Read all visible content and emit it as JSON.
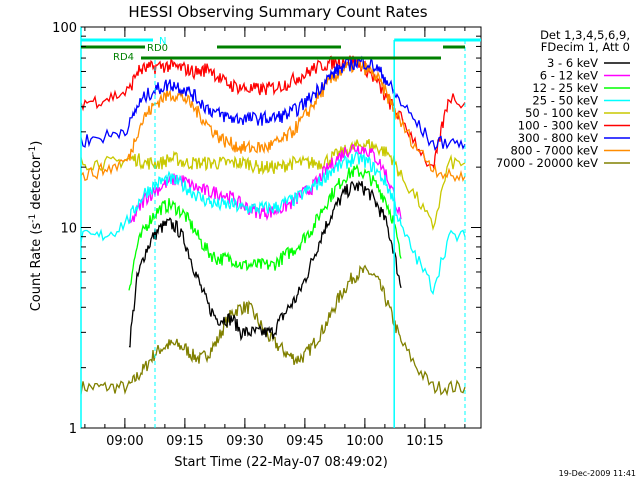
{
  "chart_data": {
    "type": "line",
    "title": "HESSI Observing Summary Count Rates",
    "xlabel": "Start Time (22-May-07 08:49:02)",
    "ylabel_main": "Count Rate (s",
    "ylabel_sup1": "-1",
    "ylabel_mid": " detector",
    "ylabel_sup2": "-1",
    "ylabel_end": ")",
    "yscale": "log",
    "ylim": [
      1,
      100
    ],
    "xlim_minutes": [
      0,
      100
    ],
    "x_tick_labels": [
      "09:00",
      "09:15",
      "09:30",
      "09:45",
      "10:00",
      "10:15"
    ],
    "x_tick_minutes": [
      10.97,
      25.97,
      40.97,
      55.97,
      70.97,
      85.97
    ],
    "y_tick_labels": [
      "1",
      "10",
      "100"
    ],
    "y_tick_values": [
      1,
      10,
      100
    ],
    "legend_header": [
      "Det 1,3,4,5,6,9,",
      "FDecim 1, Att 0"
    ],
    "legend_position": "right",
    "timestamp": "19-Dec-2009 11:41",
    "attenuator_labels": {
      "n": "N",
      "rd0": "RD0",
      "rd4": "RD4"
    },
    "series": [
      {
        "name": "3 - 6 keV",
        "color": "#000000",
        "x": [
          12,
          14,
          16,
          18,
          20,
          22,
          24,
          26,
          28,
          30,
          32,
          34,
          36,
          38,
          40,
          42,
          44,
          46,
          48,
          50,
          52,
          54,
          56,
          58,
          60,
          62,
          64,
          66,
          68,
          70,
          72,
          74,
          76,
          78,
          80
        ],
        "y": [
          2.5,
          5.5,
          7.5,
          9,
          10,
          10.5,
          10,
          8.5,
          6.5,
          5,
          4,
          3.5,
          3.5,
          3.5,
          3,
          3,
          3,
          3,
          3,
          3.5,
          4,
          4.5,
          5.5,
          7,
          9,
          11,
          13,
          15,
          16,
          16,
          15,
          13,
          11,
          8,
          5
        ]
      },
      {
        "name": "6 - 12 keV",
        "color": "#ff00ff",
        "x": [
          12,
          14,
          16,
          18,
          20,
          22,
          24,
          26,
          28,
          30,
          32,
          34,
          36,
          38,
          40,
          42,
          44,
          46,
          48,
          50,
          52,
          54,
          56,
          58,
          60,
          62,
          64,
          66,
          68,
          70,
          72,
          74,
          76,
          78,
          80
        ],
        "y": [
          10,
          12,
          14,
          15,
          16,
          17,
          17.5,
          17,
          16,
          15.5,
          15,
          15,
          14.5,
          14,
          13,
          12.5,
          12,
          12,
          12,
          12.5,
          13,
          14,
          15,
          16,
          18,
          20,
          22,
          24,
          25,
          25,
          24,
          22,
          19,
          15,
          11
        ]
      },
      {
        "name": "12 - 25 keV",
        "color": "#00ff00",
        "x": [
          12,
          14,
          16,
          18,
          20,
          22,
          24,
          26,
          28,
          30,
          32,
          34,
          36,
          38,
          40,
          42,
          44,
          46,
          48,
          50,
          52,
          54,
          56,
          58,
          60,
          62,
          64,
          66,
          68,
          70,
          72,
          74,
          76,
          78,
          80
        ],
        "y": [
          5,
          8,
          10,
          11.5,
          12.5,
          13,
          12.5,
          11.5,
          10,
          8.5,
          7.5,
          7,
          7,
          7,
          6.5,
          6.5,
          6.5,
          6.5,
          6.5,
          7,
          7.5,
          8,
          9,
          10,
          12,
          14,
          16,
          18,
          19,
          19,
          18,
          16,
          14,
          11,
          7
        ]
      },
      {
        "name": "25 - 50 keV",
        "color": "#00ffff",
        "x": [
          0,
          4,
          8,
          12,
          14,
          16,
          18,
          20,
          22,
          24,
          26,
          28,
          30,
          32,
          34,
          36,
          38,
          40,
          42,
          44,
          46,
          48,
          50,
          52,
          54,
          56,
          58,
          60,
          62,
          64,
          66,
          68,
          70,
          72,
          74,
          76,
          78,
          80,
          84,
          88,
          92,
          96
        ],
        "y": [
          9,
          9,
          9.5,
          11,
          13,
          15,
          16,
          17,
          17.5,
          17,
          16,
          15,
          14,
          13.5,
          13,
          13,
          13,
          12.5,
          12.5,
          12.5,
          12.5,
          12.5,
          13,
          13.5,
          14,
          15,
          16,
          17,
          19,
          20,
          21,
          22,
          22,
          21,
          19,
          17,
          14,
          10,
          7,
          5,
          9,
          9
        ]
      },
      {
        "name": "50 - 100 keV",
        "color": "#c8c800",
        "x": [
          0,
          4,
          8,
          12,
          14,
          16,
          18,
          20,
          22,
          24,
          26,
          28,
          30,
          32,
          34,
          36,
          38,
          40,
          42,
          44,
          46,
          48,
          50,
          52,
          54,
          56,
          58,
          60,
          62,
          64,
          66,
          68,
          70,
          72,
          74,
          76,
          78,
          80,
          84,
          88,
          92,
          96
        ],
        "y": [
          21,
          21,
          21,
          22,
          22,
          21,
          21,
          21,
          22,
          22,
          21,
          21,
          21,
          21,
          21,
          21,
          21,
          21,
          21,
          20,
          20,
          20,
          20,
          21,
          21,
          21,
          21,
          21,
          22,
          23,
          24,
          25,
          26,
          26,
          25,
          24,
          22,
          18,
          14,
          10,
          21,
          21
        ]
      },
      {
        "name": "100 - 300 keV",
        "color": "#ff0000",
        "x": [
          0,
          4,
          8,
          12,
          14,
          16,
          18,
          20,
          22,
          24,
          26,
          28,
          30,
          32,
          34,
          36,
          38,
          40,
          42,
          44,
          46,
          48,
          50,
          52,
          54,
          56,
          58,
          60,
          62,
          64,
          66,
          68,
          70,
          72,
          74,
          76,
          78,
          80,
          84,
          88,
          90,
          92,
          96
        ],
        "y": [
          42,
          43,
          45,
          48,
          60,
          62,
          63,
          64,
          64,
          63,
          62,
          60,
          60,
          63,
          57,
          53,
          51,
          50,
          49,
          49,
          49,
          50,
          51,
          53,
          56,
          58,
          62,
          64,
          66,
          67,
          68,
          68,
          65,
          60,
          53,
          45,
          40,
          35,
          26,
          19,
          30,
          45,
          42
        ]
      },
      {
        "name": "300 - 800 keV",
        "color": "#0000ff",
        "x": [
          0,
          4,
          8,
          12,
          14,
          16,
          18,
          20,
          22,
          24,
          26,
          28,
          30,
          32,
          34,
          36,
          38,
          40,
          42,
          44,
          46,
          48,
          50,
          52,
          54,
          56,
          58,
          60,
          62,
          64,
          66,
          68,
          70,
          72,
          74,
          76,
          78,
          80,
          84,
          88,
          92,
          96
        ],
        "y": [
          27,
          28,
          29,
          32,
          40,
          45,
          48,
          50,
          52,
          51,
          49,
          46,
          42,
          39,
          37,
          36,
          35,
          35,
          35,
          35,
          35,
          35,
          36,
          37,
          39,
          42,
          46,
          51,
          56,
          61,
          64,
          66,
          67,
          66,
          62,
          56,
          48,
          42,
          33,
          26,
          27,
          26
        ]
      },
      {
        "name": "800 - 7000 keV",
        "color": "#ff8c00",
        "x": [
          0,
          4,
          8,
          12,
          14,
          16,
          18,
          20,
          22,
          24,
          26,
          28,
          30,
          32,
          34,
          36,
          38,
          40,
          42,
          44,
          46,
          48,
          50,
          52,
          54,
          56,
          58,
          60,
          62,
          64,
          66,
          68,
          70,
          72,
          74,
          76,
          78,
          80,
          84,
          88,
          92,
          96
        ],
        "y": [
          18,
          19,
          20,
          22,
          30,
          36,
          40,
          44,
          46,
          46,
          44,
          40,
          36,
          32,
          29,
          27,
          26,
          25,
          25,
          25,
          25,
          26,
          27,
          29,
          32,
          36,
          41,
          47,
          53,
          58,
          62,
          64,
          64,
          61,
          56,
          48,
          40,
          33,
          25,
          20,
          18,
          18
        ]
      },
      {
        "name": "7000 - 20000 keV",
        "color": "#808000",
        "x": [
          0,
          4,
          8,
          12,
          14,
          16,
          18,
          20,
          22,
          24,
          26,
          28,
          30,
          32,
          34,
          36,
          38,
          40,
          42,
          44,
          46,
          48,
          50,
          52,
          54,
          56,
          58,
          60,
          62,
          64,
          66,
          68,
          70,
          72,
          74,
          76,
          78,
          80,
          84,
          88,
          92,
          96
        ],
        "y": [
          1.6,
          1.6,
          1.6,
          1.6,
          1.8,
          2,
          2.3,
          2.5,
          2.6,
          2.6,
          2.5,
          2.3,
          2.2,
          2.4,
          2.7,
          3.3,
          3.8,
          4,
          4,
          3.5,
          3,
          2.7,
          2.5,
          2.3,
          2.2,
          2.3,
          2.6,
          3,
          3.5,
          4.3,
          5,
          5.7,
          6,
          6,
          5.5,
          4.5,
          3.5,
          2.7,
          2,
          1.6,
          1.6,
          1.6
        ]
      }
    ]
  }
}
